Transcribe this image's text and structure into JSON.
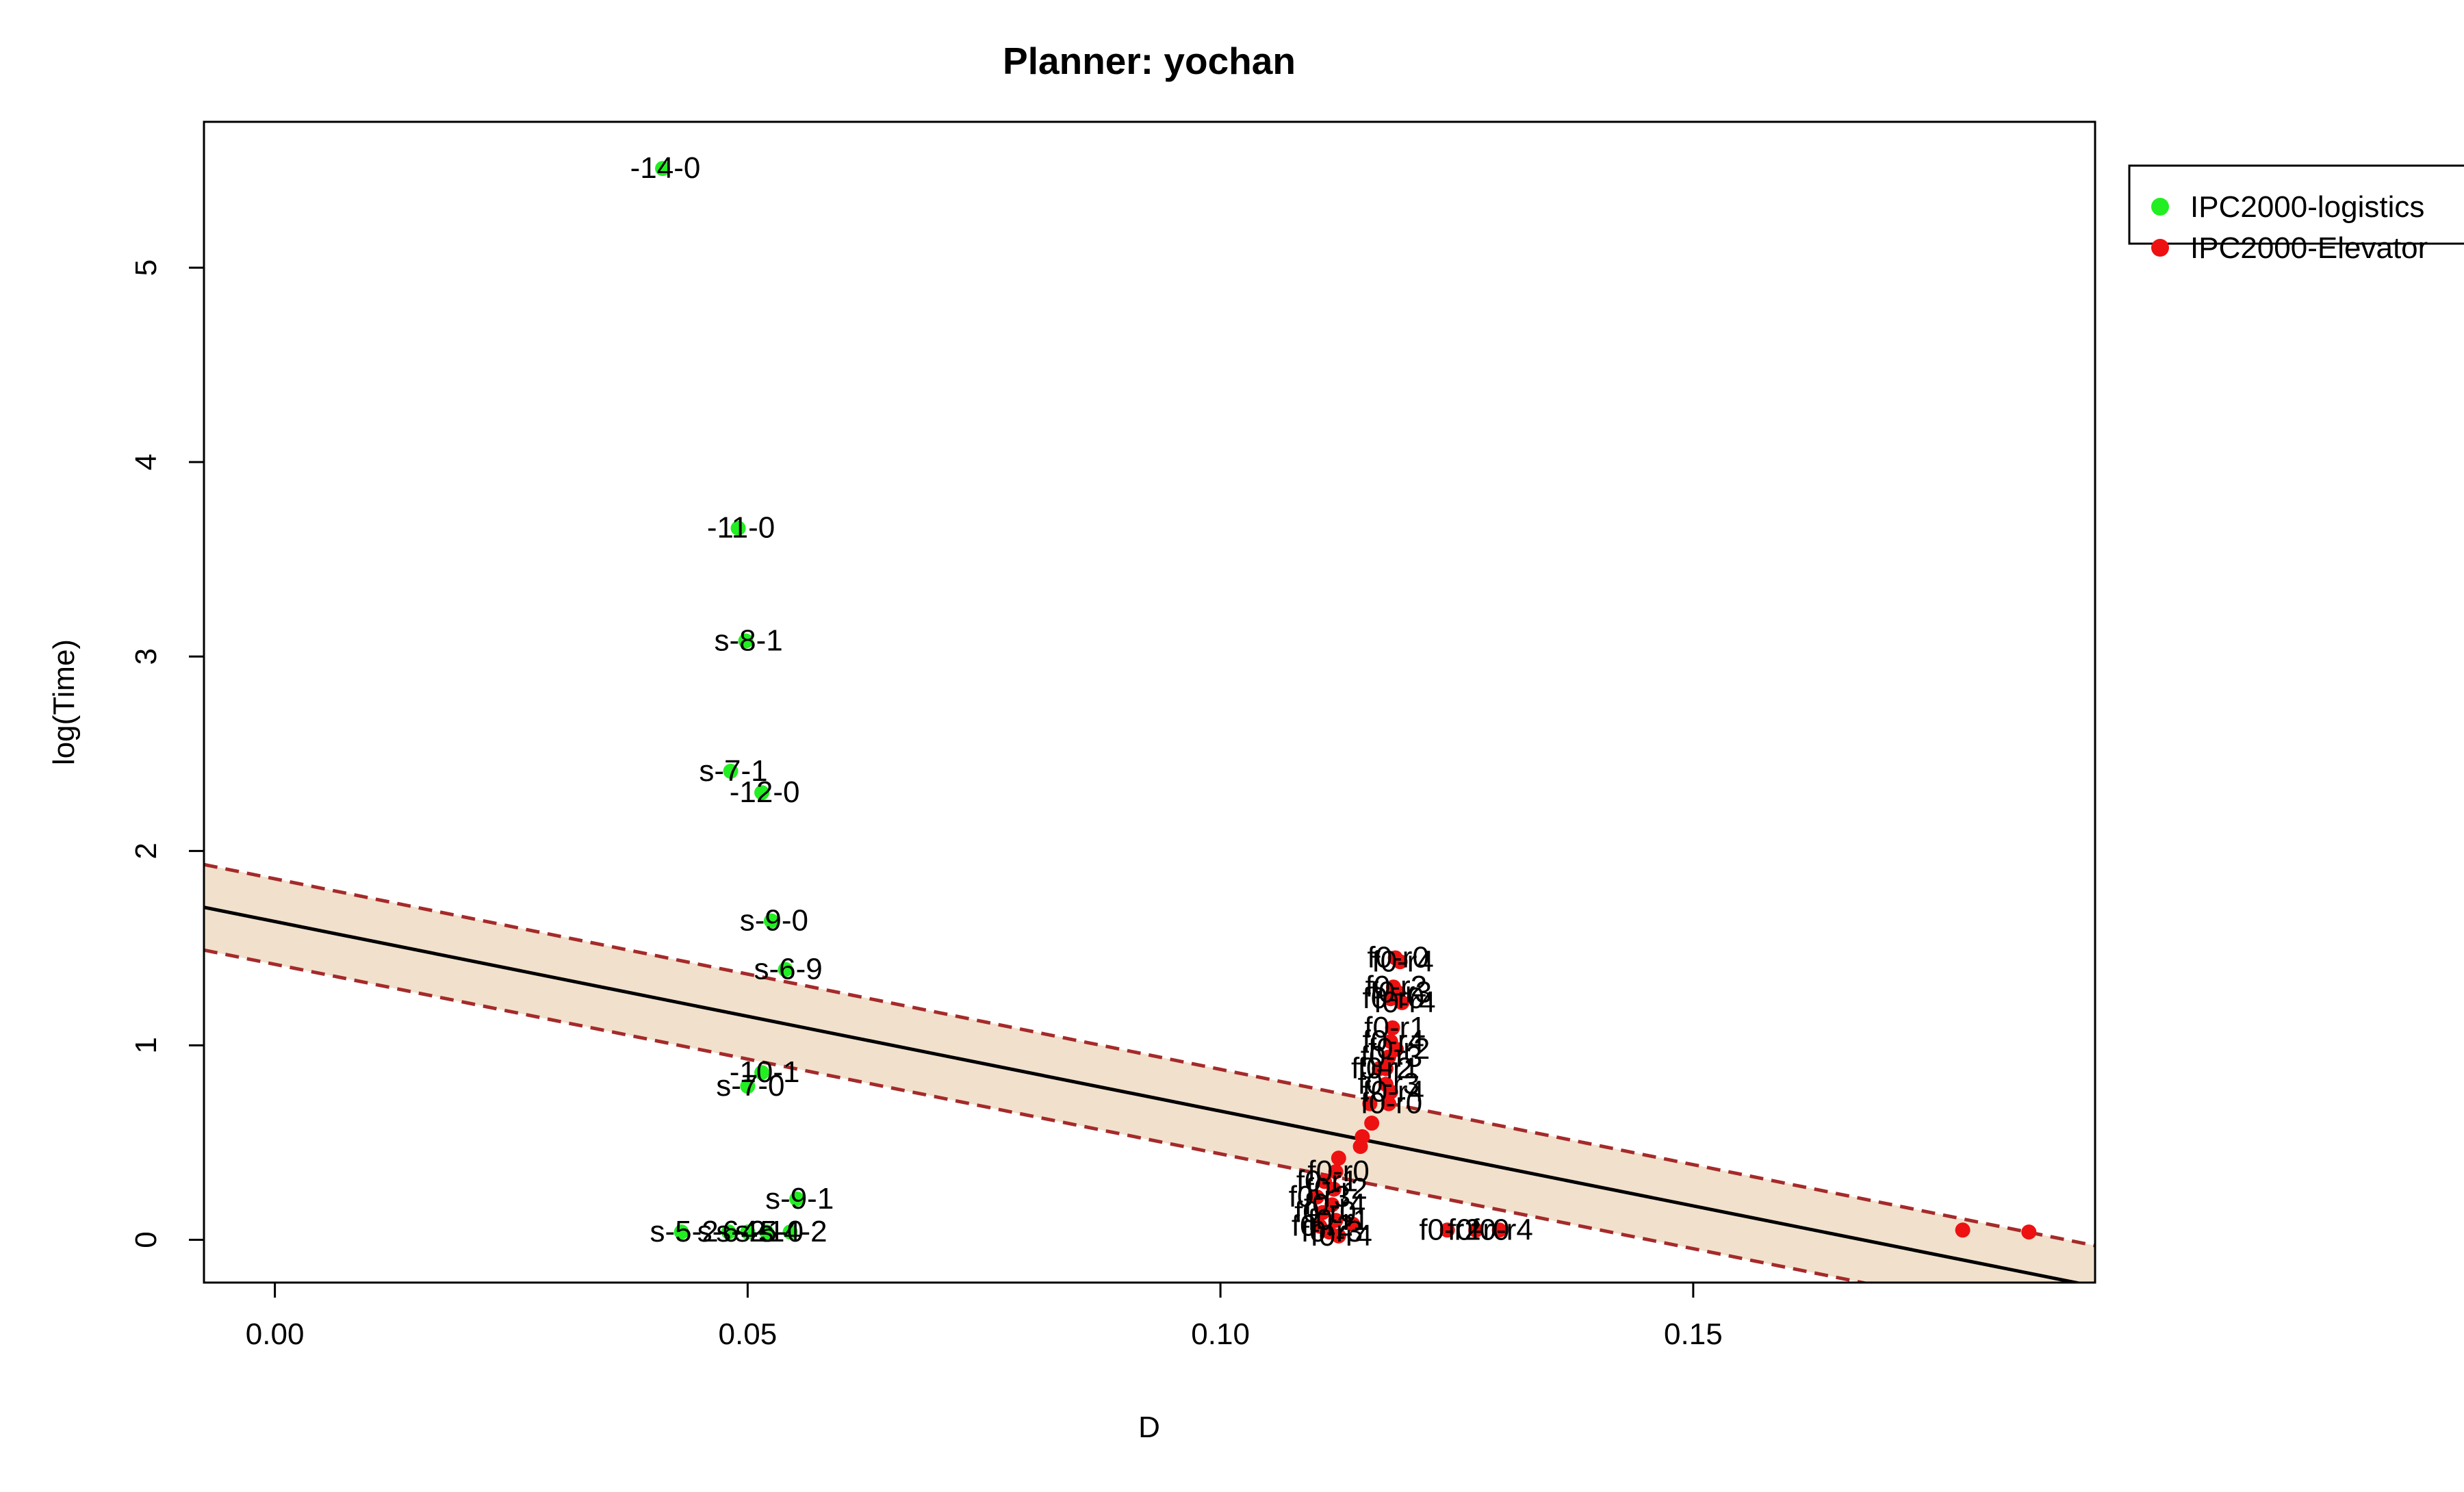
{
  "chart_data": {
    "type": "scatter",
    "title": "Planner: yochan",
    "xlabel": "D",
    "ylabel": "log(Time)",
    "xlim": [
      -0.0075,
      0.1925
    ],
    "ylim": [
      -0.22,
      5.75
    ],
    "x_ticks": [
      {
        "value": 0.0,
        "label": "0.00"
      },
      {
        "value": 0.05,
        "label": "0.05"
      },
      {
        "value": 0.1,
        "label": "0.10"
      },
      {
        "value": 0.15,
        "label": "0.15"
      }
    ],
    "y_ticks": [
      {
        "value": 0,
        "label": "0"
      },
      {
        "value": 1,
        "label": "1"
      },
      {
        "value": 2,
        "label": "2"
      },
      {
        "value": 3,
        "label": "3"
      },
      {
        "value": 4,
        "label": "4"
      },
      {
        "value": 5,
        "label": "5"
      }
    ],
    "legend": {
      "position": "top-right, outside plot"
    },
    "grid": false,
    "fit": {
      "line": [
        [
          -0.0075,
          1.71
        ],
        [
          0.1925,
          -0.24
        ]
      ],
      "band_upper": [
        [
          -0.0075,
          1.93
        ],
        [
          0.1925,
          -0.03
        ]
      ],
      "band_lower": [
        [
          -0.0075,
          1.49
        ],
        [
          0.1925,
          -0.46
        ]
      ],
      "line_color": "#000000",
      "band_edge_color": "#a52a2a",
      "band_fill_color": "#f1e0cc"
    },
    "series": [
      {
        "name": "IPC2000-logistics",
        "color": "#22ee22",
        "points": [
          {
            "x": 0.041,
            "y": 5.51,
            "label": "-14-0"
          },
          {
            "x": 0.049,
            "y": 3.66,
            "label": "-11-0"
          },
          {
            "x": 0.0498,
            "y": 3.08,
            "label": "s-8-1"
          },
          {
            "x": 0.0482,
            "y": 2.41,
            "label": "s-7-1"
          },
          {
            "x": 0.0515,
            "y": 2.3,
            "label": "-12-0"
          },
          {
            "x": 0.0525,
            "y": 1.64,
            "label": "s-9-0"
          },
          {
            "x": 0.054,
            "y": 1.39,
            "label": "s-6-9"
          },
          {
            "x": 0.0515,
            "y": 0.86,
            "label": "-10-1"
          },
          {
            "x": 0.05,
            "y": 0.79,
            "label": "s-7-0"
          },
          {
            "x": 0.0552,
            "y": 0.21,
            "label": "s-9-1"
          },
          {
            "x": 0.043,
            "y": 0.04,
            "label": "s-5-2"
          },
          {
            "x": 0.048,
            "y": 0.04,
            "label": "s-6-2"
          },
          {
            "x": 0.05,
            "y": 0.04,
            "label": "s-4-1"
          },
          {
            "x": 0.052,
            "y": 0.04,
            "label": "s-5-0"
          },
          {
            "x": 0.0545,
            "y": 0.04,
            "label": "s-4-2"
          }
        ]
      },
      {
        "name": "IPC2000-Elevator",
        "color": "#ee1111",
        "points": [
          {
            "x": 0.1185,
            "y": 1.45,
            "label": "f0-r0"
          },
          {
            "x": 0.119,
            "y": 1.43,
            "label": "f0-r4"
          },
          {
            "x": 0.1183,
            "y": 1.3,
            "label": "f0-r2"
          },
          {
            "x": 0.1188,
            "y": 1.27,
            "label": "f0-r3"
          },
          {
            "x": 0.118,
            "y": 1.24,
            "label": "f0-r0"
          },
          {
            "x": 0.1192,
            "y": 1.22,
            "label": "f0-r4"
          },
          {
            "x": 0.1182,
            "y": 1.09,
            "label": "f0-r1"
          },
          {
            "x": 0.118,
            "y": 1.02,
            "label": "f0-r4"
          },
          {
            "x": 0.1186,
            "y": 0.98,
            "label": "f0-r2"
          },
          {
            "x": 0.1178,
            "y": 0.94,
            "label": "f0-r3"
          },
          {
            "x": 0.1175,
            "y": 0.88,
            "label": "f0-r1"
          },
          {
            "x": 0.1168,
            "y": 0.88,
            "label": "f0-r2"
          },
          {
            "x": 0.1175,
            "y": 0.8,
            "label": "f0-r3"
          },
          {
            "x": 0.118,
            "y": 0.76,
            "label": "f0-r4"
          },
          {
            "x": 0.1178,
            "y": 0.7,
            "label": "f0-r0"
          },
          {
            "x": 0.1158,
            "y": 0.7,
            "label": ""
          },
          {
            "x": 0.116,
            "y": 0.6,
            "label": ""
          },
          {
            "x": 0.115,
            "y": 0.53,
            "label": ""
          },
          {
            "x": 0.1148,
            "y": 0.48,
            "label": ""
          },
          {
            "x": 0.1125,
            "y": 0.42,
            "label": ""
          },
          {
            "x": 0.1122,
            "y": 0.35,
            "label": "f0-r0"
          },
          {
            "x": 0.111,
            "y": 0.3,
            "label": "f0-r1"
          },
          {
            "x": 0.112,
            "y": 0.26,
            "label": "f0-r2"
          },
          {
            "x": 0.1102,
            "y": 0.22,
            "label": "f0-r3"
          },
          {
            "x": 0.1118,
            "y": 0.18,
            "label": "f0-r4"
          },
          {
            "x": 0.1108,
            "y": 0.14,
            "label": "f0-r0"
          },
          {
            "x": 0.1122,
            "y": 0.1,
            "label": "f0-r1"
          },
          {
            "x": 0.1105,
            "y": 0.07,
            "label": "f0-r2"
          },
          {
            "x": 0.1115,
            "y": 0.04,
            "label": "f0-r3"
          },
          {
            "x": 0.1125,
            "y": 0.02,
            "label": "f0-r4"
          },
          {
            "x": 0.114,
            "y": 0.08,
            "label": ""
          },
          {
            "x": 0.124,
            "y": 0.05,
            "label": "f0-r2"
          },
          {
            "x": 0.127,
            "y": 0.05,
            "label": "f0-r0"
          },
          {
            "x": 0.1295,
            "y": 0.05,
            "label": "f0-r4"
          },
          {
            "x": 0.1785,
            "y": 0.05,
            "label": ""
          },
          {
            "x": 0.1855,
            "y": 0.04,
            "label": ""
          }
        ]
      }
    ]
  }
}
